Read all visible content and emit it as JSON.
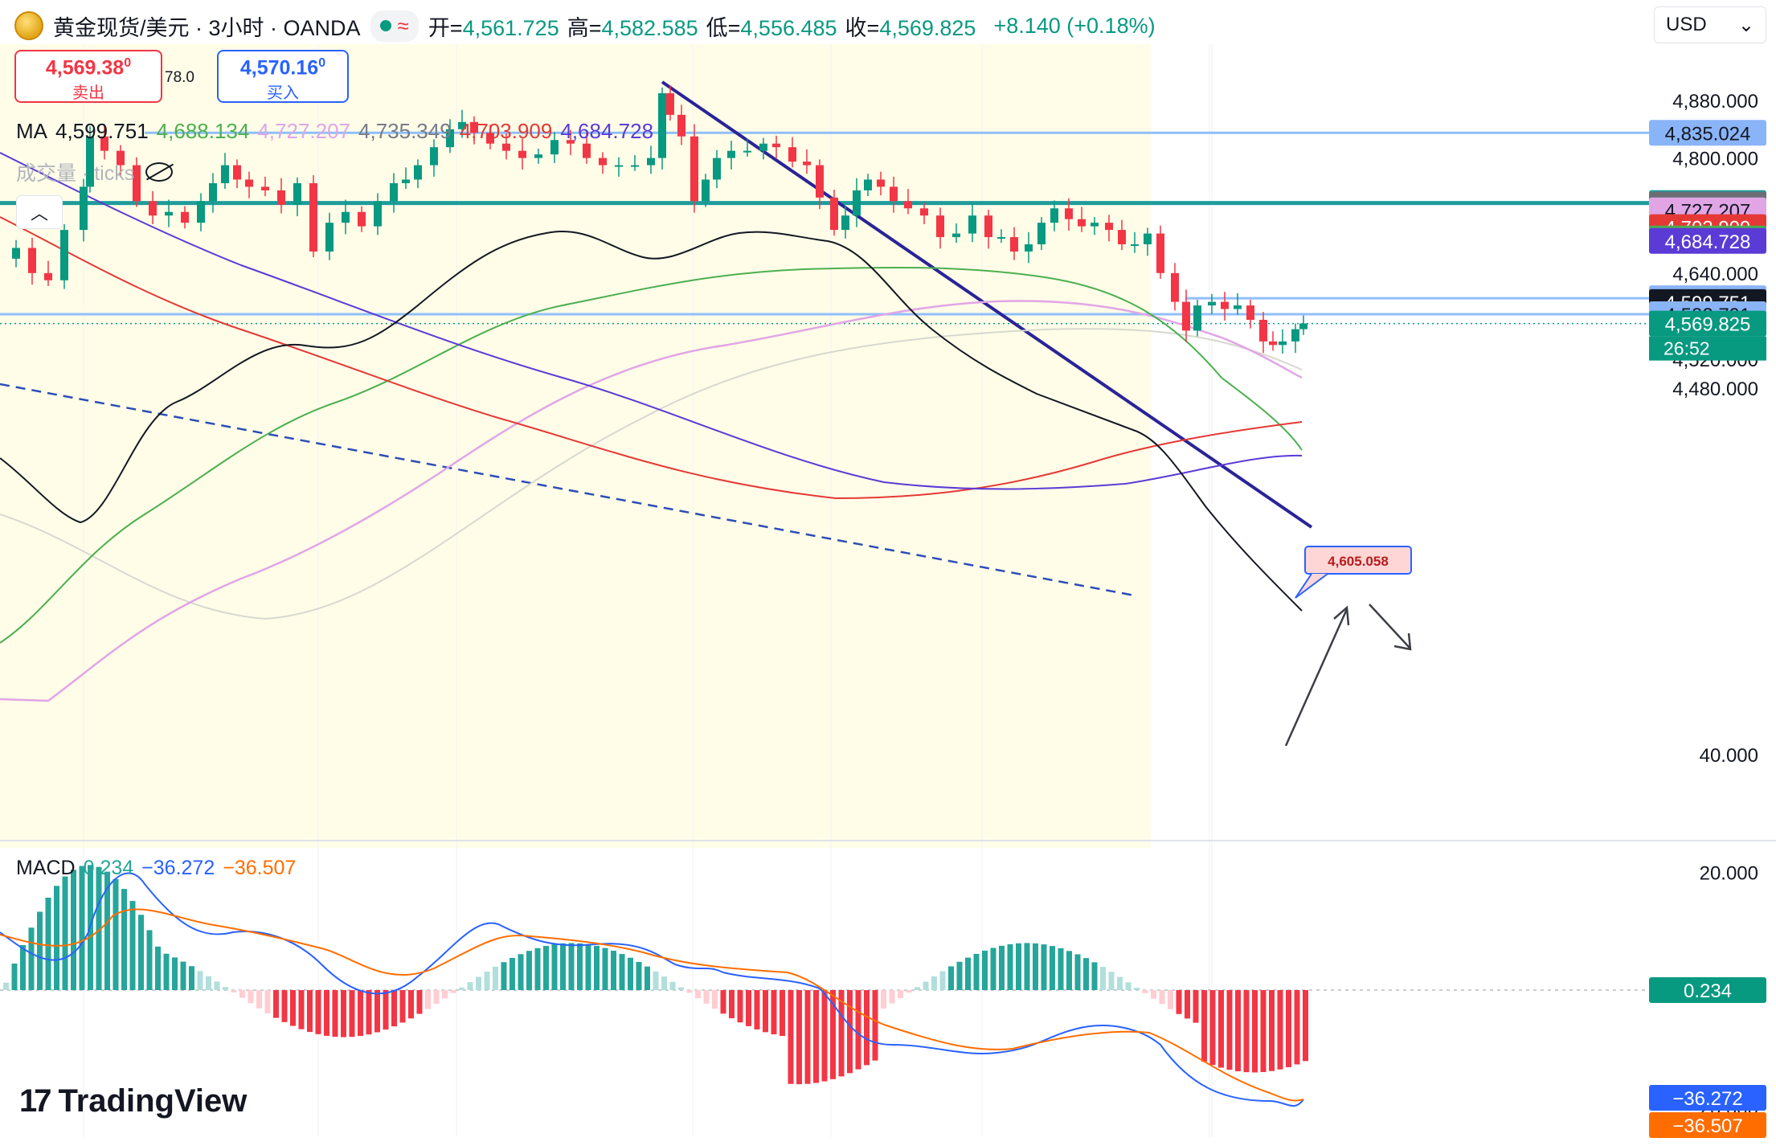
{
  "header": {
    "title": "黄金现货/美元 · 3小时 · OANDA",
    "wave_icon": "≈",
    "ohlc": [
      {
        "k": "开=",
        "v": "4,561.725"
      },
      {
        "k": "高=",
        "v": "4,582.585"
      },
      {
        "k": "低=",
        "v": "4,556.485"
      },
      {
        "k": "收=",
        "v": "4,569.825"
      }
    ],
    "change": "+8.140 (+0.18%)"
  },
  "currency": {
    "value": "USD"
  },
  "trade": {
    "sell_price": "4,569.38",
    "sell_sup": "0",
    "sell_label": "卖出",
    "spread": "78.0",
    "buy_price": "4,570.16",
    "buy_sup": "0",
    "buy_label": "买入"
  },
  "ma_legend": {
    "label": "MA",
    "values": [
      {
        "v": "4,599.751",
        "color": "#131722"
      },
      {
        "v": "4,688.134",
        "color": "#4caf50"
      },
      {
        "v": "4,727.207",
        "color": "#e1a5e6"
      },
      {
        "v": "4,735.349",
        "color": "#787b86"
      },
      {
        "v": "4,703.909",
        "color": "#e53935"
      },
      {
        "v": "4,684.728",
        "color": "#5b3bd6"
      }
    ]
  },
  "volume_label": "成交量 · ticks",
  "macd_legend": {
    "label": "MACD",
    "values": [
      {
        "v": "0.234",
        "color": "#26a69a"
      },
      {
        "v": "−36.272",
        "color": "#2962ff"
      },
      {
        "v": "−36.507",
        "color": "#ff6d00"
      }
    ]
  },
  "price_axis": {
    "ticks": [
      "4,880.000",
      "4,840.000",
      "4,800.000",
      "4,640.000",
      "4,520.000",
      "4,480.000"
    ],
    "tick_values": [
      4880,
      4840,
      4800,
      4640,
      4520,
      4480
    ],
    "labels": [
      {
        "text": "4,835.024",
        "value": 4835.024,
        "bg": "#8ab4f8",
        "fg": "#131722"
      },
      {
        "text": "4,737.428",
        "value": 4737.428,
        "bg": "#1e9c9c",
        "fg": "#ffffff"
      },
      {
        "text": "4,735.349",
        "value": 4735.349,
        "bg": "#6b6e75",
        "fg": "#ffffff"
      },
      {
        "text": "4,727.207",
        "value": 4727.207,
        "bg": "#e1a5e6",
        "fg": "#131722"
      },
      {
        "text": "4,703.909",
        "value": 4703.909,
        "bg": "#e53935",
        "fg": "#ffffff"
      },
      {
        "text": "4,688.134",
        "value": 4688.134,
        "bg": "#4caf50",
        "fg": "#ffffff"
      },
      {
        "text": "4,684.728",
        "value": 4684.728,
        "bg": "#5b3bd6",
        "fg": "#ffffff"
      },
      {
        "text": "4,605.029",
        "value": 4605.029,
        "bg": "#8ab4f8",
        "fg": "#131722"
      },
      {
        "text": "4,599.751",
        "value": 4599.751,
        "bg": "#131722",
        "fg": "#ffffff"
      },
      {
        "text": "4,582.791",
        "value": 4582.791,
        "bg": "#8ab4f8",
        "fg": "#131722"
      },
      {
        "text": "4,569.825",
        "value": 4569.825,
        "bg": "#089981",
        "fg": "#ffffff"
      }
    ],
    "countdown": "26:52"
  },
  "macd_axis": {
    "ticks": [
      "40.000",
      "20.000",
      "−20.000"
    ],
    "tick_values": [
      40,
      20,
      -20
    ],
    "labels": [
      {
        "text": "0.234",
        "value": 0.234,
        "bg": "#089981",
        "fg": "#ffffff"
      },
      {
        "text": "−36.272",
        "value": -36.272,
        "bg": "#2962ff",
        "fg": "#ffffff"
      },
      {
        "text": "−36.507",
        "value": -36.507,
        "bg": "#ff6d00",
        "fg": "#ffffff"
      }
    ]
  },
  "annotation": {
    "text": "4,605.058",
    "value": 4605.058
  },
  "levels": {
    "resistance_teal": 4737.428,
    "res_blue_top": 4835.024,
    "res_blue_mid": 4605.029,
    "support_blue": 4582.791,
    "last_close": 4569.825
  },
  "chart_data": {
    "type": "candlestick",
    "series": [
      {
        "name": "MA",
        "values": [
          4599.751,
          4688.134,
          4727.207,
          4735.349,
          4703.909,
          4684.728
        ]
      }
    ],
    "last": {
      "open": 4561.725,
      "high": 4582.585,
      "low": 4556.485,
      "close": 4569.825,
      "change": 8.14,
      "change_pct": 0.18
    },
    "price_ylim": [
      4465,
      4915
    ],
    "macd": {
      "histogram": 0.234,
      "macd": -36.272,
      "signal": -36.507,
      "ylim": [
        -44,
        44
      ]
    }
  },
  "brand": {
    "name": "TradingView",
    "mark": "17"
  }
}
